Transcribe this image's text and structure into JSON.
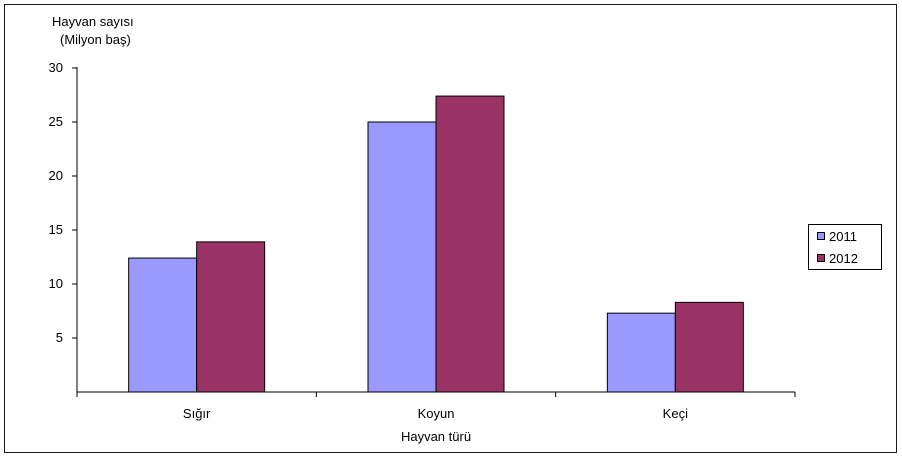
{
  "chart_data": {
    "type": "bar",
    "ylabel_line1": "Hayvan sayısı",
    "ylabel_line2": "(Milyon baş)",
    "xlabel": "Hayvan türü",
    "categories": [
      "Sığır",
      "Koyun",
      "Keçi"
    ],
    "series": [
      {
        "name": "2011",
        "values": [
          12.4,
          25.0,
          7.3
        ],
        "color": "#9999ff"
      },
      {
        "name": "2012",
        "values": [
          13.9,
          27.4,
          8.3
        ],
        "color": "#993366"
      }
    ],
    "ylim": [
      0,
      30
    ],
    "yticks": [
      5,
      10,
      15,
      20,
      25,
      30
    ],
    "grid": false,
    "legend_placement": "right"
  }
}
